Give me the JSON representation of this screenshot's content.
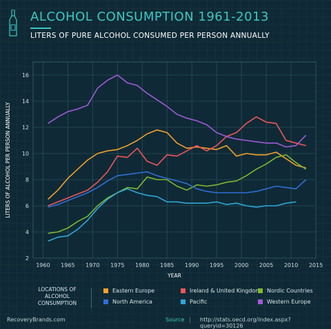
{
  "header": {
    "title": "ALCOHOL CONSUMPTION 1961-2013",
    "subtitle": "LITERS OF PURE ALCOHOL CONSUMED PER PERSON ANNUALLY"
  },
  "legend": {
    "title": "LOCATIONS OF ALCOHOL CONSUMPTION"
  },
  "footer": {
    "brand": "RecoveryBrands.com",
    "source_label": "Source",
    "separator": "|",
    "url": "http://stats.oecd.org/index.aspx?queryid=30126"
  },
  "chart_data": {
    "type": "line",
    "xlabel": "YEAR",
    "ylabel": "LITERS OF ALCOHOL PER PERSON ANNUALLY",
    "xlim": [
      1958,
      2015
    ],
    "ylim": [
      2,
      17
    ],
    "xticks": [
      1960,
      1965,
      1970,
      1975,
      1980,
      1985,
      1990,
      1995,
      2000,
      2005,
      2010,
      2015
    ],
    "yticks": [
      2,
      4,
      6,
      8,
      10,
      12,
      14,
      16
    ],
    "grid": true,
    "legend_position": "bottom",
    "x": [
      1961,
      1963,
      1965,
      1967,
      1969,
      1971,
      1973,
      1975,
      1977,
      1979,
      1981,
      1983,
      1985,
      1987,
      1989,
      1991,
      1993,
      1995,
      1997,
      1999,
      2001,
      2003,
      2005,
      2007,
      2009,
      2011,
      2013
    ],
    "series": [
      {
        "name": "Eastern Europe",
        "color": "#f6a02c",
        "values": [
          6.5,
          7.2,
          8.1,
          8.8,
          9.5,
          10.0,
          10.2,
          10.3,
          10.6,
          11.0,
          11.5,
          11.8,
          11.6,
          10.8,
          10.4,
          10.5,
          10.4,
          10.3,
          10.6,
          9.8,
          10.0,
          9.9,
          9.9,
          10.1,
          9.6,
          9.1,
          8.9
        ]
      },
      {
        "name": "Ireland & United Kingdom",
        "color": "#f2555a",
        "values": [
          6.0,
          6.3,
          6.6,
          6.9,
          7.2,
          7.8,
          8.6,
          9.8,
          9.7,
          10.4,
          9.4,
          9.1,
          9.9,
          9.8,
          10.2,
          10.6,
          10.2,
          10.6,
          11.3,
          11.6,
          12.3,
          12.8,
          12.4,
          12.3,
          11.0,
          10.8,
          10.6
        ]
      },
      {
        "name": "Nordic Countries",
        "color": "#7fb833",
        "values": [
          3.9,
          4.0,
          4.3,
          4.8,
          5.2,
          6.0,
          6.6,
          7.0,
          7.4,
          7.3,
          8.2,
          8.0,
          8.0,
          7.5,
          7.2,
          7.6,
          7.5,
          7.6,
          7.8,
          7.9,
          8.3,
          8.8,
          9.2,
          9.7,
          9.9,
          9.3,
          8.8
        ]
      },
      {
        "name": "North America",
        "color": "#2f6fd6",
        "values": [
          5.9,
          6.1,
          6.4,
          6.7,
          7.0,
          7.4,
          7.9,
          8.3,
          8.4,
          8.5,
          8.6,
          8.3,
          8.1,
          7.9,
          7.7,
          7.3,
          7.1,
          7.0,
          7.0,
          7.0,
          7.0,
          7.1,
          7.3,
          7.5,
          7.4,
          7.3,
          8.0
        ]
      },
      {
        "name": "Pacific",
        "color": "#2ea7d8",
        "values": [
          3.3,
          3.6,
          3.7,
          4.2,
          4.9,
          5.8,
          6.5,
          7.0,
          7.3,
          7.0,
          6.8,
          6.7,
          6.3,
          6.3,
          6.2,
          6.2,
          6.2,
          6.3,
          6.1,
          6.2,
          6.0,
          5.9,
          6.0,
          6.0,
          6.2,
          6.3,
          null
        ]
      },
      {
        "name": "Western Europe",
        "color": "#a05ad8",
        "values": [
          12.3,
          12.8,
          13.2,
          13.4,
          13.7,
          15.0,
          15.6,
          16.0,
          15.4,
          15.2,
          14.6,
          14.1,
          13.6,
          13.0,
          12.7,
          12.5,
          12.2,
          11.6,
          11.3,
          11.1,
          11.0,
          10.9,
          10.8,
          10.8,
          10.5,
          10.6,
          11.4
        ]
      }
    ]
  }
}
